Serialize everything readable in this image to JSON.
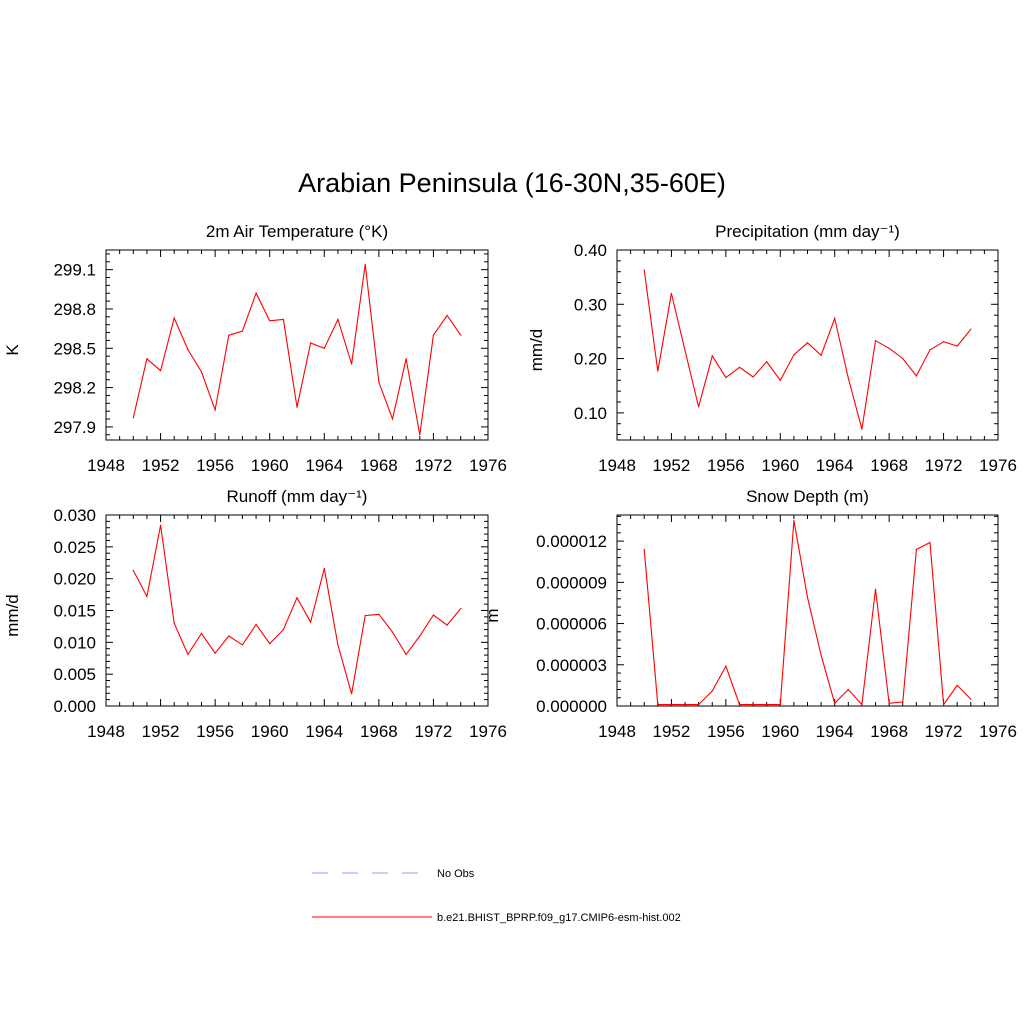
{
  "title": "Arabian Peninsula (16-30N,35-60E)",
  "colors": {
    "model": "#ff0000",
    "obs": "#9999ff",
    "axis": "#000000"
  },
  "legend": {
    "obs_label": "No Obs",
    "model_label": "b.e21.BHIST_BPRP.f09_g17.CMIP6-esm-hist.002"
  },
  "chart_data": [
    {
      "type": "line",
      "title": "2m Air Temperature (°K)",
      "ylabel": "K",
      "xlim": [
        1948,
        1976
      ],
      "ylim": [
        297.8,
        299.25
      ],
      "xticks": [
        "1948",
        "1952",
        "1956",
        "1960",
        "1964",
        "1968",
        "1972",
        "1976"
      ],
      "yticks": [
        "297.9",
        "298.2",
        "298.5",
        "298.8",
        "299.1"
      ],
      "x": [
        1950,
        1951,
        1952,
        1953,
        1954,
        1955,
        1956,
        1957,
        1958,
        1959,
        1960,
        1961,
        1962,
        1963,
        1964,
        1965,
        1966,
        1967,
        1968,
        1969,
        1970,
        1971,
        1972,
        1973,
        1974
      ],
      "series": [
        {
          "name": "b.e21.BHIST_BPRP.f09_g17.CMIP6-esm-hist.002",
          "values": [
            297.97,
            298.42,
            298.33,
            298.73,
            298.49,
            298.32,
            298.03,
            298.6,
            298.63,
            298.92,
            298.71,
            298.72,
            298.05,
            298.54,
            298.5,
            298.72,
            298.38,
            299.14,
            298.24,
            297.96,
            298.42,
            297.84,
            298.6,
            298.75,
            298.6
          ]
        }
      ]
    },
    {
      "type": "line",
      "title": "Precipitation (mm day⁻¹)",
      "ylabel": "mm/d",
      "xlim": [
        1948,
        1976
      ],
      "ylim": [
        0.05,
        0.4
      ],
      "xticks": [
        "1948",
        "1952",
        "1956",
        "1960",
        "1964",
        "1968",
        "1972",
        "1976"
      ],
      "yticks": [
        "0.10",
        "0.20",
        "0.30",
        "0.40"
      ],
      "x": [
        1950,
        1951,
        1952,
        1953,
        1954,
        1955,
        1956,
        1957,
        1958,
        1959,
        1960,
        1961,
        1962,
        1963,
        1964,
        1965,
        1966,
        1967,
        1968,
        1969,
        1970,
        1971,
        1972,
        1973,
        1974
      ],
      "series": [
        {
          "name": "b.e21.BHIST_BPRP.f09_g17.CMIP6-esm-hist.002",
          "values": [
            0.363,
            0.177,
            0.32,
            0.215,
            0.111,
            0.205,
            0.165,
            0.184,
            0.166,
            0.194,
            0.16,
            0.207,
            0.229,
            0.206,
            0.274,
            0.164,
            0.07,
            0.233,
            0.219,
            0.2,
            0.168,
            0.216,
            0.231,
            0.223,
            0.254
          ]
        }
      ]
    },
    {
      "type": "line",
      "title": "Runoff (mm day⁻¹)",
      "ylabel": "mm/d",
      "xlim": [
        1948,
        1976
      ],
      "ylim": [
        0,
        0.03
      ],
      "xticks": [
        "1948",
        "1952",
        "1956",
        "1960",
        "1964",
        "1968",
        "1972",
        "1976"
      ],
      "yticks": [
        "0.000",
        "0.005",
        "0.010",
        "0.015",
        "0.020",
        "0.025",
        "0.030"
      ],
      "x": [
        1950,
        1951,
        1952,
        1953,
        1954,
        1955,
        1956,
        1957,
        1958,
        1959,
        1960,
        1961,
        1962,
        1963,
        1964,
        1965,
        1966,
        1967,
        1968,
        1969,
        1970,
        1971,
        1972,
        1973,
        1974
      ],
      "series": [
        {
          "name": "b.e21.BHIST_BPRP.f09_g17.CMIP6-esm-hist.002",
          "values": [
            0.0213,
            0.0172,
            0.0284,
            0.013,
            0.0081,
            0.0114,
            0.0083,
            0.011,
            0.0096,
            0.0128,
            0.0098,
            0.012,
            0.017,
            0.0132,
            0.0216,
            0.0096,
            0.0019,
            0.0142,
            0.0144,
            0.0116,
            0.0081,
            0.011,
            0.0143,
            0.0127,
            0.0153
          ]
        }
      ]
    },
    {
      "type": "line",
      "title": "Snow Depth (m)",
      "ylabel": "m",
      "xlim": [
        1948,
        1976
      ],
      "ylim": [
        0,
        1.39e-05
      ],
      "xticks": [
        "1948",
        "1952",
        "1956",
        "1960",
        "1964",
        "1968",
        "1972",
        "1976"
      ],
      "yticks": [
        "0.000000",
        "0.000003",
        "0.000006",
        "0.000009",
        "0.000012"
      ],
      "x": [
        1950,
        1951,
        1952,
        1953,
        1954,
        1955,
        1956,
        1957,
        1958,
        1959,
        1960,
        1961,
        1962,
        1963,
        1964,
        1965,
        1966,
        1967,
        1968,
        1969,
        1970,
        1971,
        1972,
        1973,
        1974
      ],
      "series": [
        {
          "name": "b.e21.BHIST_BPRP.f09_g17.CMIP6-esm-hist.002",
          "values": [
            1.14e-05,
            1e-07,
            1e-07,
            1e-07,
            1e-07,
            1.1e-06,
            2.9e-06,
            1e-07,
            1e-07,
            1e-07,
            1e-07,
            1.35e-05,
            7.9e-06,
            3.7e-06,
            2e-07,
            1.2e-06,
            1e-07,
            8.5e-06,
            2e-07,
            3e-07,
            1.14e-05,
            1.19e-05,
            1e-07,
            1.5e-06,
            5e-07
          ]
        }
      ]
    }
  ]
}
